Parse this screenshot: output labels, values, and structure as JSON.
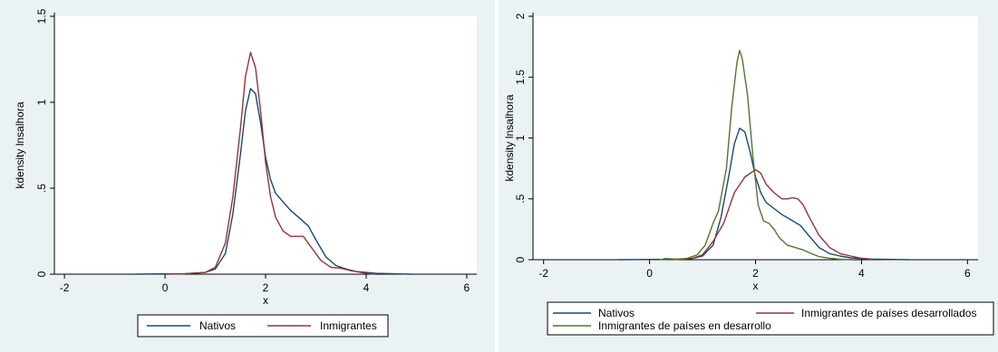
{
  "chart_data": [
    {
      "type": "line",
      "title": "",
      "xlabel": "x",
      "ylabel": "kdensity lnsalhora",
      "xlim": [
        -2.2,
        6.2
      ],
      "ylim": [
        0,
        1.5
      ],
      "xticks": [
        "-2",
        "0",
        "2",
        "4",
        "6"
      ],
      "yticks": [
        "0",
        ".5",
        "1",
        "1.5"
      ],
      "xtick_values": [
        -2,
        0,
        2,
        4,
        6
      ],
      "ytick_values": [
        0,
        0.5,
        1,
        1.5
      ],
      "grid": false,
      "legend_position": "bottom",
      "series": [
        {
          "name": "Nativos",
          "color": "#1a476f",
          "points": [
            [
              -0.6,
              0
            ],
            [
              0,
              0.002
            ],
            [
              0.4,
              0.003
            ],
            [
              0.8,
              0.01
            ],
            [
              1.0,
              0.03
            ],
            [
              1.2,
              0.12
            ],
            [
              1.35,
              0.35
            ],
            [
              1.5,
              0.7
            ],
            [
              1.6,
              0.95
            ],
            [
              1.7,
              1.08
            ],
            [
              1.8,
              1.05
            ],
            [
              1.9,
              0.88
            ],
            [
              2.0,
              0.68
            ],
            [
              2.1,
              0.55
            ],
            [
              2.2,
              0.47
            ],
            [
              2.35,
              0.42
            ],
            [
              2.5,
              0.37
            ],
            [
              2.7,
              0.32
            ],
            [
              2.85,
              0.28
            ],
            [
              3.0,
              0.2
            ],
            [
              3.2,
              0.1
            ],
            [
              3.4,
              0.05
            ],
            [
              3.6,
              0.03
            ],
            [
              3.8,
              0.015
            ],
            [
              4.2,
              0.005
            ],
            [
              4.6,
              0.002
            ],
            [
              4.9,
              0
            ]
          ]
        },
        {
          "name": "Inmigrantes",
          "color": "#90353b",
          "points": [
            [
              0,
              0
            ],
            [
              0.4,
              0.002
            ],
            [
              0.8,
              0.01
            ],
            [
              1.0,
              0.04
            ],
            [
              1.2,
              0.18
            ],
            [
              1.35,
              0.45
            ],
            [
              1.5,
              0.85
            ],
            [
              1.6,
              1.15
            ],
            [
              1.7,
              1.29
            ],
            [
              1.8,
              1.2
            ],
            [
              1.9,
              0.95
            ],
            [
              2.0,
              0.65
            ],
            [
              2.1,
              0.45
            ],
            [
              2.2,
              0.33
            ],
            [
              2.35,
              0.25
            ],
            [
              2.5,
              0.22
            ],
            [
              2.6,
              0.22
            ],
            [
              2.75,
              0.22
            ],
            [
              2.9,
              0.16
            ],
            [
              3.1,
              0.08
            ],
            [
              3.3,
              0.04
            ],
            [
              3.5,
              0.035
            ],
            [
              3.7,
              0.02
            ],
            [
              4.0,
              0.005
            ],
            [
              4.2,
              0
            ]
          ]
        }
      ]
    },
    {
      "type": "line",
      "title": "",
      "xlabel": "x",
      "ylabel": "kdensity lnsalhora",
      "xlim": [
        -2.2,
        6.2
      ],
      "ylim": [
        0,
        2
      ],
      "xticks": [
        "-2",
        "0",
        "2",
        "4",
        "6"
      ],
      "yticks": [
        "0",
        ".5",
        "1",
        "1.5",
        "2"
      ],
      "xtick_values": [
        -2,
        0,
        2,
        4,
        6
      ],
      "ytick_values": [
        0,
        0.5,
        1,
        1.5,
        2
      ],
      "grid": false,
      "legend_position": "bottom",
      "series": [
        {
          "name": "Nativos",
          "color": "#1a476f",
          "points": [
            [
              -0.6,
              0
            ],
            [
              0,
              0.002
            ],
            [
              0.4,
              0.003
            ],
            [
              0.8,
              0.01
            ],
            [
              1.0,
              0.03
            ],
            [
              1.2,
              0.12
            ],
            [
              1.35,
              0.35
            ],
            [
              1.5,
              0.7
            ],
            [
              1.6,
              0.95
            ],
            [
              1.7,
              1.08
            ],
            [
              1.8,
              1.05
            ],
            [
              1.9,
              0.88
            ],
            [
              2.0,
              0.68
            ],
            [
              2.1,
              0.55
            ],
            [
              2.2,
              0.47
            ],
            [
              2.35,
              0.42
            ],
            [
              2.5,
              0.37
            ],
            [
              2.7,
              0.32
            ],
            [
              2.85,
              0.28
            ],
            [
              3.0,
              0.2
            ],
            [
              3.2,
              0.1
            ],
            [
              3.4,
              0.05
            ],
            [
              3.6,
              0.03
            ],
            [
              3.8,
              0.015
            ],
            [
              4.2,
              0.005
            ],
            [
              4.6,
              0.002
            ],
            [
              4.9,
              0
            ]
          ]
        },
        {
          "name": "Inmigrantes de países desarrollados",
          "color": "#90353b",
          "points": [
            [
              0.4,
              0
            ],
            [
              0.8,
              0.01
            ],
            [
              1.0,
              0.04
            ],
            [
              1.2,
              0.15
            ],
            [
              1.4,
              0.3
            ],
            [
              1.6,
              0.55
            ],
            [
              1.8,
              0.68
            ],
            [
              2.0,
              0.74
            ],
            [
              2.1,
              0.71
            ],
            [
              2.2,
              0.62
            ],
            [
              2.35,
              0.55
            ],
            [
              2.5,
              0.5
            ],
            [
              2.6,
              0.5
            ],
            [
              2.7,
              0.51
            ],
            [
              2.8,
              0.5
            ],
            [
              2.9,
              0.45
            ],
            [
              3.0,
              0.36
            ],
            [
              3.2,
              0.2
            ],
            [
              3.4,
              0.1
            ],
            [
              3.6,
              0.05
            ],
            [
              3.8,
              0.03
            ],
            [
              4.0,
              0.012
            ],
            [
              4.2,
              0.004
            ]
          ]
        },
        {
          "name": "Inmigrantes de países en desarrollo",
          "color": "#55752f",
          "points": [
            [
              0.2,
              0
            ],
            [
              0.3,
              0.01
            ],
            [
              0.5,
              0.005
            ],
            [
              0.7,
              0.01
            ],
            [
              0.9,
              0.04
            ],
            [
              1.05,
              0.12
            ],
            [
              1.2,
              0.3
            ],
            [
              1.3,
              0.4
            ],
            [
              1.45,
              0.75
            ],
            [
              1.55,
              1.25
            ],
            [
              1.65,
              1.62
            ],
            [
              1.7,
              1.72
            ],
            [
              1.75,
              1.65
            ],
            [
              1.85,
              1.35
            ],
            [
              1.95,
              0.85
            ],
            [
              2.05,
              0.45
            ],
            [
              2.15,
              0.32
            ],
            [
              2.25,
              0.3
            ],
            [
              2.35,
              0.25
            ],
            [
              2.45,
              0.18
            ],
            [
              2.6,
              0.12
            ],
            [
              2.75,
              0.1
            ],
            [
              2.9,
              0.08
            ],
            [
              3.0,
              0.06
            ],
            [
              3.2,
              0.025
            ],
            [
              3.4,
              0.012
            ],
            [
              3.6,
              0.004
            ],
            [
              3.8,
              0
            ]
          ]
        }
      ]
    }
  ]
}
